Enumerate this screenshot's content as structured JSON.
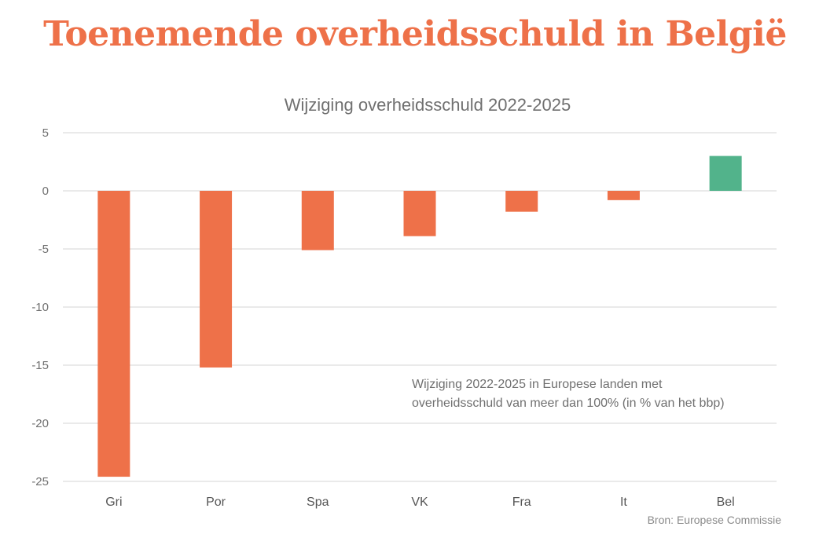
{
  "header": {
    "title": "Toenemende overheidsschuld in België"
  },
  "source": "Bron: Europese Commissie",
  "chart_data": {
    "type": "bar",
    "title": "Wijziging overheidsschuld 2022-2025",
    "annotation": [
      "Wijziging 2022-2025 in Europese landen met",
      "overheidsschuld van meer dan 100% (in % van het bbp)"
    ],
    "categories": [
      "Gri",
      "Por",
      "Spa",
      "VK",
      "Fra",
      "It",
      "Bel"
    ],
    "values": [
      -24.6,
      -15.2,
      -5.1,
      -3.9,
      -1.8,
      -0.8,
      3.0
    ],
    "colors": [
      "#ee7149",
      "#ee7149",
      "#ee7149",
      "#ee7149",
      "#ee7149",
      "#ee7149",
      "#52b38b"
    ],
    "ylim": [
      -25,
      5
    ],
    "yticks": [
      5,
      0,
      -5,
      -10,
      -15,
      -20,
      -25
    ],
    "grid": true,
    "xlabel": "",
    "ylabel": ""
  }
}
